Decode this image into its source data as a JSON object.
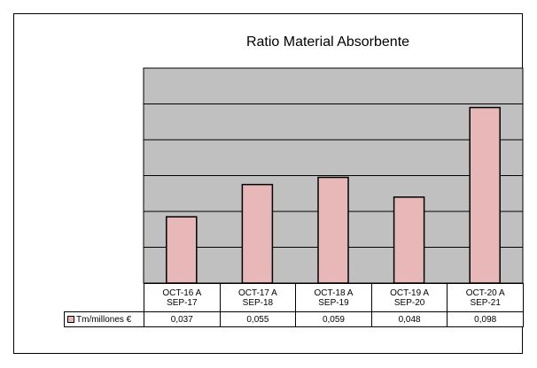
{
  "chart_data": {
    "type": "bar",
    "title": "Ratio Material Absorbente",
    "categories": [
      "OCT-16 A SEP-17",
      "OCT-17 A SEP-18",
      "OCT-18 A SEP-19",
      "OCT-19 A SEP-20",
      "OCT-20 A SEP-21"
    ],
    "series": [
      {
        "name": "Tm/millones €",
        "color": "#e8b8b8",
        "values": [
          0.037,
          0.055,
          0.059,
          0.048,
          0.098
        ],
        "value_labels": [
          "0,037",
          "0,055",
          "0,059",
          "0,048",
          "0,098"
        ]
      }
    ],
    "ylim": [
      0,
      0.12
    ],
    "yticks": [
      0,
      0.02,
      0.04,
      0.06,
      0.08,
      0.1,
      0.12
    ],
    "grid": true,
    "plot_color": "#c0c0c0"
  }
}
